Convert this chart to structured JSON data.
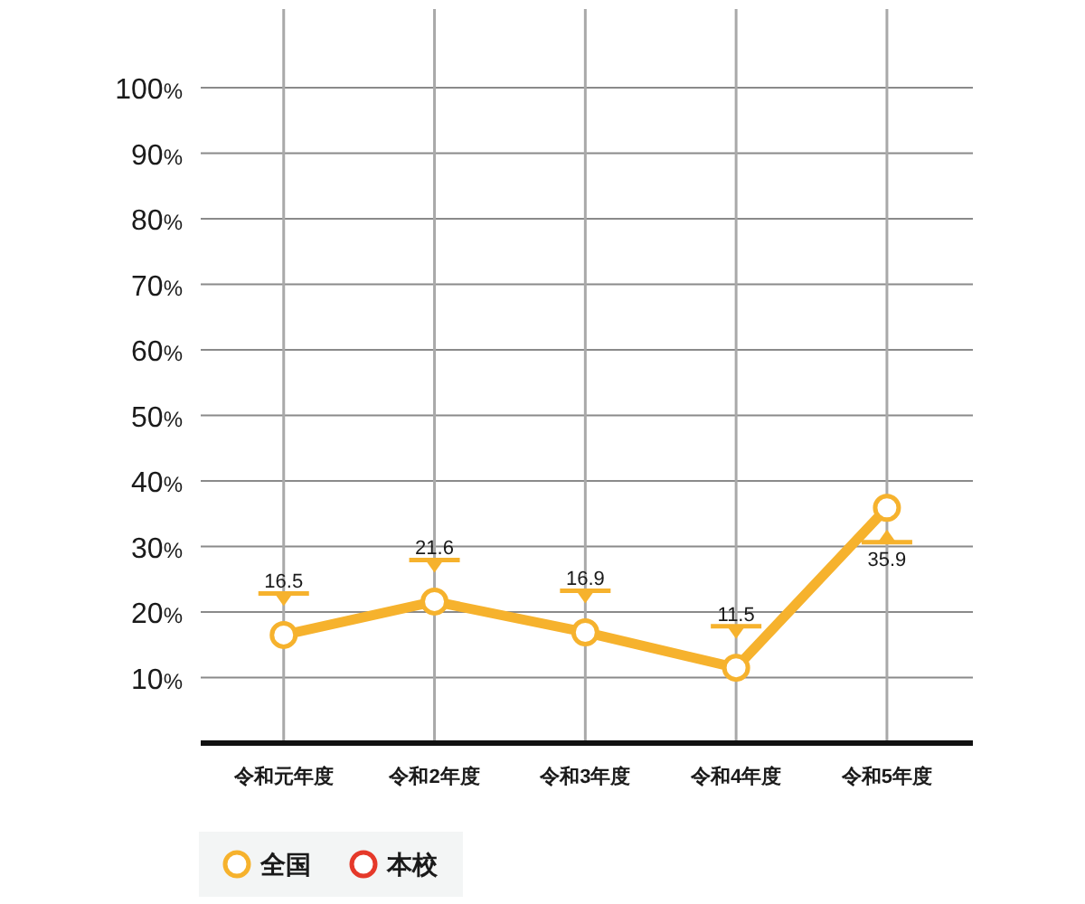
{
  "chart_data": {
    "type": "line",
    "categories": [
      "令和元年度",
      "令和2年度",
      "令和3年度",
      "令和4年度",
      "令和5年度"
    ],
    "series": [
      {
        "name": "全国",
        "color": "#f6b22d",
        "values": [
          16.5,
          21.6,
          16.9,
          11.5,
          35.9
        ]
      },
      {
        "name": "本校",
        "color": "#e5392a",
        "values": [
          null,
          null,
          null,
          null,
          null
        ]
      }
    ],
    "ylim": [
      0,
      112
    ],
    "yticks": [
      {
        "value": 10,
        "label": "10%"
      },
      {
        "value": 20,
        "label": "20%"
      },
      {
        "value": 30,
        "label": "30%"
      },
      {
        "value": 40,
        "label": "40%"
      },
      {
        "value": 50,
        "label": "50%"
      },
      {
        "value": 60,
        "label": "60%"
      },
      {
        "value": 70,
        "label": "70%"
      },
      {
        "value": 80,
        "label": "80%"
      },
      {
        "value": 90,
        "label": "90%"
      },
      {
        "value": 100,
        "label": "100%"
      }
    ],
    "grid": true,
    "legend": "bottom left",
    "marker": "circle",
    "data_labels": true
  }
}
